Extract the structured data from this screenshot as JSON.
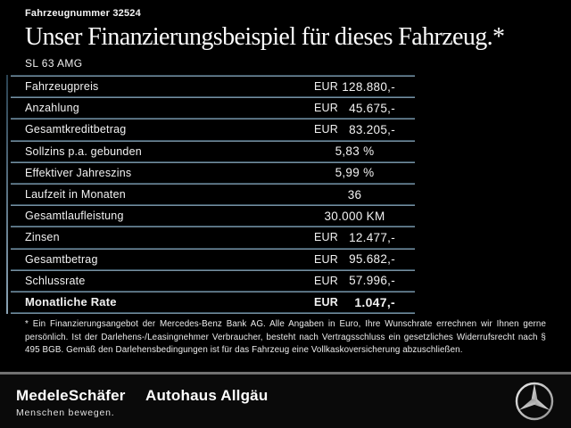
{
  "header": {
    "vehicle_number": "Fahrzeugnummer 32524",
    "title": "Unser Finanzierungsbeispiel für dieses Fahrzeug.*",
    "model": "SL 63 AMG"
  },
  "table": {
    "rows": [
      {
        "label": "Fahrzeugpreis",
        "currency": "EUR",
        "value": "128.880,-",
        "bold": false
      },
      {
        "label": "Anzahlung",
        "currency": "EUR",
        "value": "45.675,-",
        "bold": false
      },
      {
        "label": "Gesamtkreditbetrag",
        "currency": "EUR",
        "value": "83.205,-",
        "bold": false
      },
      {
        "label": "Sollzins p.a. gebunden",
        "currency": "",
        "value": "5,83 %",
        "bold": false
      },
      {
        "label": "Effektiver Jahreszins",
        "currency": "",
        "value": "5,99 %",
        "bold": false
      },
      {
        "label": "Laufzeit in Monaten",
        "currency": "",
        "value": "36",
        "bold": false
      },
      {
        "label": "Gesamtlaufleistung",
        "currency": "",
        "value": "30.000 KM",
        "bold": false
      },
      {
        "label": "Zinsen",
        "currency": "EUR",
        "value": "12.477,-",
        "bold": false
      },
      {
        "label": "Gesamtbetrag",
        "currency": "EUR",
        "value": "95.682,-",
        "bold": false
      },
      {
        "label": "Schlussrate",
        "currency": "EUR",
        "value": "57.996,-",
        "bold": false
      },
      {
        "label": "Monatliche Rate",
        "currency": "EUR",
        "value": "1.047,-",
        "bold": true
      }
    ]
  },
  "footnote": "* Ein Finanzierungsangebot der Mercedes-Benz Bank AG. Alle Angaben in Euro, Ihre Wunschrate errechnen wir Ihnen gerne persönlich. Ist der Darlehens-/Leasingnehmer Verbraucher, besteht nach Vertragsschluss ein gesetzliches Widerrufsrecht nach § 495 BGB. Gemäß den Darlehensbedingungen ist für das Fahrzeug eine Vollkaskoversicherung abzuschließen.",
  "footer": {
    "dealer1": "MedeleSchäfer",
    "tagline": "Menschen bewegen.",
    "dealer2": "Autohaus Allgäu",
    "brand_icon": "mercedes-star-icon"
  },
  "colors": {
    "background": "#000000",
    "separator_light": "#93abbc",
    "separator_dark": "#1f3847",
    "footer_divider": "#717171",
    "text": "#f2f2f2",
    "star_silver": "#c6c6c6"
  }
}
